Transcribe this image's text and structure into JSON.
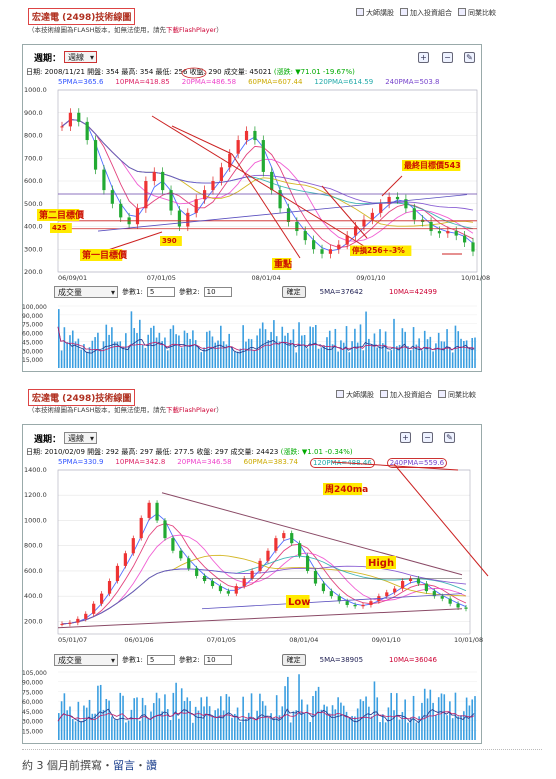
{
  "top_right": {
    "a": "大師講股",
    "b": "加入投資組合",
    "c": "同業比較"
  },
  "panel1": {
    "title": "宏達電 (2498)技術線圖",
    "subtitle_a": "（本技術線圖為FLASH版本，如無法使用，請先",
    "subtitle_link": "下載FlashPlayer",
    "subtitle_c": "）",
    "period_label": "週期：",
    "period_value": "週線",
    "info": "日期: 2008/11/21 開盤: 354 最高: 354 最低: 256 收盤: 290 成交量: 45021",
    "change": "(漲跌: ▼71.01 -19.67%)",
    "ma": [
      "5PMA=365.6",
      "10PMA=418.85",
      "20PMA=486.58",
      "60PMA=607.44",
      "120PMA=614.59",
      "240PMA=503.8"
    ],
    "ma_colors": [
      "#3355ff",
      "#dd2266",
      "#ee44cc",
      "#ccaa00",
      "#22aaaa",
      "#7744cc"
    ],
    "y_ticks": [
      "1000.0",
      "900.0",
      "800.0",
      "700.0",
      "600.0",
      "500.0",
      "400.0",
      "300.0",
      "200.0"
    ],
    "x_ticks": [
      "06/09/01",
      "07/01/05",
      "08/01/04",
      "09/01/10",
      "10/01/08"
    ],
    "vol_select": "成交量",
    "param1_label": "參數1:",
    "param1": "5",
    "param2_label": "參數2:",
    "param2": "10",
    "confirm": "確定",
    "vol_ma1": "5MA=37642",
    "vol_ma2": "10MA=42499",
    "vol_ticks": [
      "100,000",
      "90,000",
      "75,000",
      "60,000",
      "45,000",
      "30,000",
      "15,000"
    ],
    "annotations": {
      "target_final": "最終目標價543",
      "target2": "第二目標價",
      "target2_val": "425",
      "target1": "第一目標價",
      "target1_val": "390",
      "focus": "重點",
      "stop": "停損256+-3%"
    }
  },
  "panel2": {
    "title": "宏達電 (2498)技術線圖",
    "subtitle_a": "（本技術線圖為FLASH版本，如無法使用，請先",
    "subtitle_link": "下載FlashPlayer",
    "subtitle_c": "）",
    "period_label": "週期：",
    "period_value": "週線",
    "info": "日期: 2010/02/09 開盤: 292 最高: 297 最低: 277.5 收盤: 297 成交量: 24423",
    "change": "(漲跌: ▼1.01 -0.34%)",
    "ma": [
      "5PMA=330.9",
      "10PMA=342.8",
      "20PMA=346.58",
      "60PMA=383.74",
      "120PMA=488.46",
      "240PMA=559.6"
    ],
    "ma_colors": [
      "#3355ff",
      "#dd2266",
      "#ee44cc",
      "#ccaa00",
      "#22aaaa",
      "#7744cc"
    ],
    "y_ticks": [
      "1400.0",
      "1200.0",
      "1000.0",
      "800.0",
      "600.0",
      "400.0",
      "200.0"
    ],
    "x_ticks": [
      "05/01/07",
      "06/01/06",
      "07/01/05",
      "08/01/04",
      "09/01/10",
      "10/01/08"
    ],
    "vol_select": "成交量",
    "param1_label": "參數1:",
    "param1": "5",
    "param2_label": "參數2:",
    "param2": "10",
    "confirm": "確定",
    "vol_ma1": "5MA=38905",
    "vol_ma2": "10MA=36046",
    "vol_ticks": [
      "105,000",
      "90,000",
      "75,000",
      "60,000",
      "45,000",
      "30,000",
      "15,000"
    ],
    "annotations": {
      "week240": "周240ma",
      "high": "High",
      "low": "Low"
    }
  },
  "footer": {
    "prefix": "約 3 個月前撰寫・",
    "comment": "留言",
    "sep": "・",
    "like": "讚"
  },
  "chart_data": [
    {
      "type": "line",
      "title": "宏達電 (2498)技術線圖",
      "ylim": [
        200,
        1000
      ],
      "x_ticks": [
        "06/09/01",
        "07/01/05",
        "08/01/04",
        "09/01/10",
        "10/01/08"
      ],
      "series": [
        {
          "values": [
            840,
            900,
            860,
            780,
            650,
            560,
            500,
            440,
            410,
            480,
            600,
            640,
            560,
            470,
            400,
            460,
            520,
            560,
            600,
            660,
            720,
            780,
            820,
            780,
            640,
            560,
            480,
            420,
            380,
            340,
            300,
            280,
            300,
            320,
            360,
            400,
            430,
            460,
            500,
            530,
            520,
            480,
            430,
            420,
            380,
            370,
            380,
            360,
            330,
            290
          ]
        }
      ]
    },
    {
      "type": "line",
      "title": "宏達電 (2498)技術線圖",
      "ylim": [
        100,
        1400
      ],
      "x_ticks": [
        "05/01/07",
        "06/01/06",
        "07/01/05",
        "08/01/04",
        "09/01/10",
        "10/01/08"
      ],
      "series": [
        {
          "values": [
            180,
            190,
            220,
            260,
            340,
            420,
            520,
            640,
            740,
            860,
            1020,
            1140,
            1000,
            860,
            760,
            700,
            620,
            560,
            520,
            480,
            440,
            420,
            480,
            540,
            600,
            680,
            760,
            860,
            900,
            820,
            720,
            600,
            500,
            440,
            400,
            360,
            330,
            320,
            330,
            360,
            400,
            430,
            460,
            520,
            540,
            500,
            440,
            400,
            380,
            340,
            310,
            300
          ]
        }
      ]
    }
  ]
}
